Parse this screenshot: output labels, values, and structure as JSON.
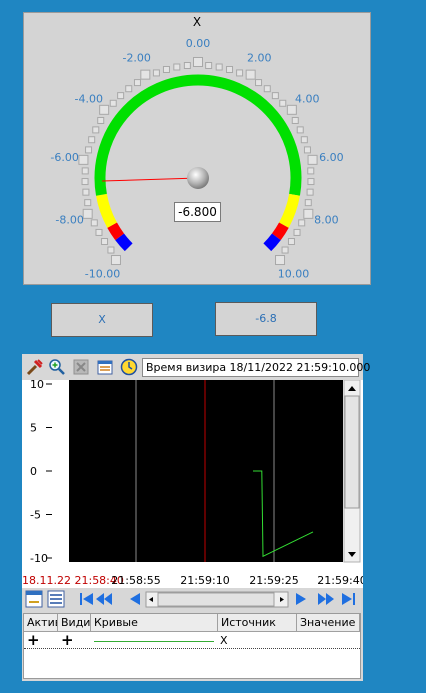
{
  "gauge": {
    "title": "X",
    "value_text": "-6.800",
    "value": -6.8,
    "min": -10,
    "max": 10,
    "scale_labels": [
      "-10.00",
      "-8.00",
      "-6.00",
      "-4.00",
      "-2.00",
      "0.00",
      "2.00",
      "4.00",
      "6.00",
      "8.00",
      "10.00"
    ],
    "colors": {
      "green": "#00e000",
      "yellow": "#ffff00",
      "red": "#ff0000",
      "blue": "#0000ff",
      "needle": "#ff0000",
      "label": "#3a7fc0"
    }
  },
  "buttons": {
    "left_label": "X",
    "right_label": "-6.8"
  },
  "trend": {
    "time_label": "Время визира 18/11/2022 21:59:10.000",
    "y_ticks": [
      "10",
      "5",
      "0",
      "-5",
      "-10"
    ],
    "x_ticks": [
      "18.11.22 21:58:40",
      "21:58:55",
      "21:59:10",
      "21:59:25",
      "21:59:40"
    ],
    "cursor_color": "#c00000",
    "first_tick_color": "#c00000"
  },
  "table": {
    "headers": [
      "Актив",
      "Видим",
      "Кривые",
      "Источник",
      "Значение"
    ],
    "row": {
      "active": "+",
      "visible": "+",
      "source": "X",
      "value": ""
    }
  },
  "chart_data": {
    "type": "line",
    "series": [
      {
        "points": [
          [
            0,
            0
          ],
          [
            0.7,
            0
          ],
          [
            0.8,
            -9.8
          ],
          [
            4.8,
            -7
          ]
        ]
      }
    ],
    "ylim": [
      -10,
      10
    ]
  }
}
